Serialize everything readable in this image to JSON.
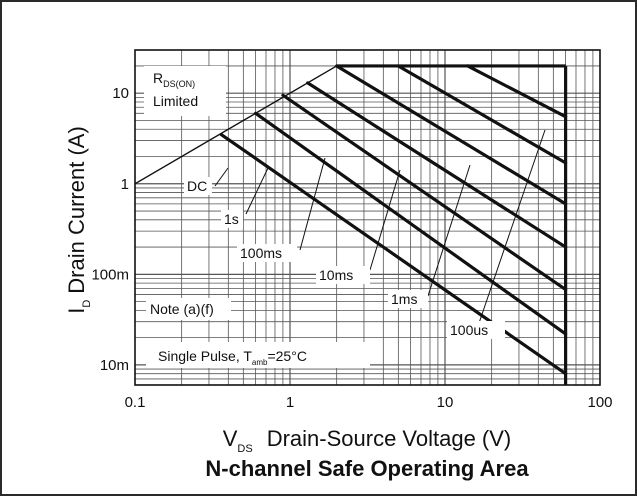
{
  "chart_data": {
    "type": "line",
    "title": "N-channel Safe Operating Area",
    "xscale": "log",
    "yscale": "log",
    "xlim": [
      0.1,
      100
    ],
    "ylim": [
      0.006,
      30
    ],
    "grid": true,
    "xlabel": {
      "symbol": "V",
      "subscript": "DS",
      "text": "Drain-Source Voltage (V)"
    },
    "ylabel": {
      "symbol": "I",
      "subscript": "D",
      "text": "Drain Current (A)"
    },
    "xticks": [
      {
        "value": 0.1,
        "label": "0.1"
      },
      {
        "value": 1,
        "label": "1"
      },
      {
        "value": 10,
        "label": "10"
      },
      {
        "value": 100,
        "label": "100"
      }
    ],
    "yticks": [
      {
        "value": 10,
        "label": "10"
      },
      {
        "value": 1,
        "label": "1"
      },
      {
        "value": 0.1,
        "label": "100m"
      },
      {
        "value": 0.01,
        "label": "10m"
      }
    ],
    "rds_limit": {
      "label_main": "R",
      "label_sub": "DS(ON)",
      "label_line2": "Limited",
      "points": [
        [
          0.1,
          1
        ],
        [
          2,
          20
        ]
      ]
    },
    "current_limit": 20,
    "voltage_limit": 60,
    "series": [
      {
        "name": "DC",
        "points": [
          [
            0.36,
            3.5
          ],
          [
            60,
            0.008
          ]
        ]
      },
      {
        "name": "1s",
        "points": [
          [
            0.6,
            6
          ],
          [
            60,
            0.022
          ]
        ]
      },
      {
        "name": "100ms",
        "points": [
          [
            0.9,
            9.5
          ],
          [
            60,
            0.068
          ]
        ]
      },
      {
        "name": "10ms",
        "points": [
          [
            1.3,
            13
          ],
          [
            60,
            0.2
          ]
        ]
      },
      {
        "name": "1ms",
        "points": [
          [
            2,
            20
          ],
          [
            60,
            0.6
          ]
        ]
      },
      {
        "name": "100us",
        "points": [
          [
            5,
            20
          ],
          [
            60,
            1.7
          ]
        ]
      },
      {
        "name": "",
        "points": [
          [
            14,
            20
          ],
          [
            60,
            5.5
          ]
        ]
      }
    ],
    "annotations": {
      "note": "Note (a)(f)",
      "pulse_prefix": "Single Pulse, T",
      "pulse_sub": "amb",
      "pulse_suffix": "=25°C"
    },
    "colors": {
      "line": "#111111",
      "grid": "#555555",
      "frame": "#2a2a2a"
    }
  }
}
